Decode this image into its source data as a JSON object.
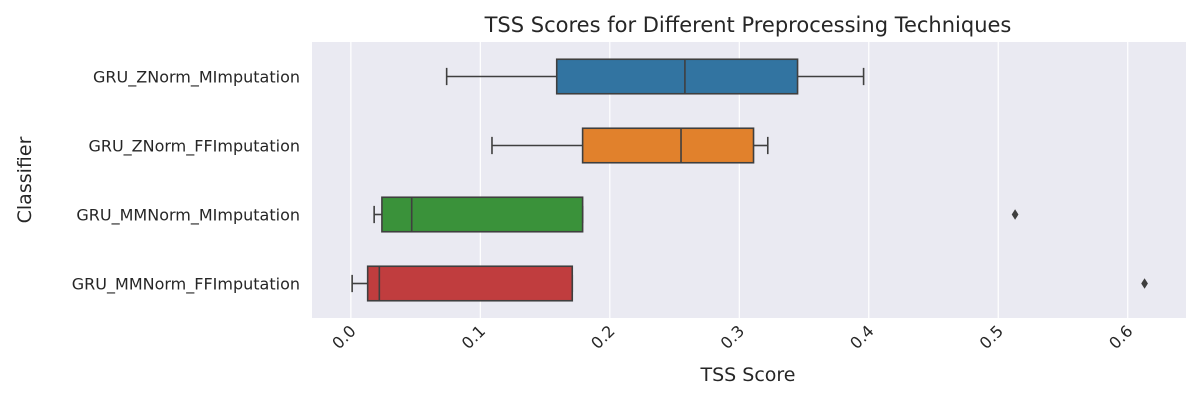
{
  "chart_data": {
    "type": "boxplot",
    "orientation": "horizontal",
    "title": "TSS Scores for Different Preprocessing Techniques",
    "xlabel": "TSS Score",
    "ylabel": "Classifier",
    "xlim": [
      -0.03,
      0.645
    ],
    "xticks": [
      0.0,
      0.1,
      0.2,
      0.3,
      0.4,
      0.5,
      0.6
    ],
    "xtick_labels": [
      "0.0",
      "0.1",
      "0.2",
      "0.3",
      "0.4",
      "0.5",
      "0.6"
    ],
    "grid": true,
    "background": "#eaeaf2",
    "categories": [
      "GRU_ZNorm_MImputation",
      "GRU_ZNorm_FFImputation",
      "GRU_MMNorm_MImputation",
      "GRU_MMNorm_FFImputation"
    ],
    "boxes": [
      {
        "whisker_low": 0.074,
        "q1": 0.159,
        "median": 0.258,
        "q3": 0.345,
        "whisker_high": 0.396,
        "outliers": [],
        "color": "#3274a1"
      },
      {
        "whisker_low": 0.109,
        "q1": 0.179,
        "median": 0.255,
        "q3": 0.311,
        "whisker_high": 0.322,
        "outliers": [],
        "color": "#e1812c"
      },
      {
        "whisker_low": 0.018,
        "q1": 0.024,
        "median": 0.047,
        "q3": 0.179,
        "whisker_high": 0.179,
        "outliers": [
          0.513
        ],
        "color": "#3a923a"
      },
      {
        "whisker_low": 0.001,
        "q1": 0.013,
        "median": 0.022,
        "q3": 0.171,
        "whisker_high": 0.171,
        "outliers": [
          0.613
        ],
        "color": "#c03d3e"
      }
    ]
  }
}
